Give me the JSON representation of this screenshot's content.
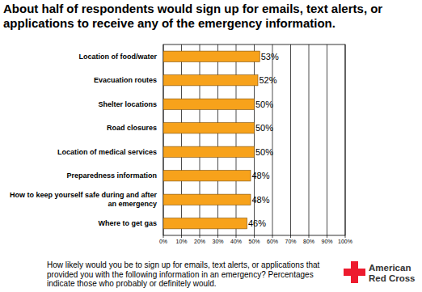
{
  "chart_data": {
    "type": "bar",
    "orientation": "horizontal",
    "title": "About half of respondents would sign up for emails, text alerts, or applications to receive any of the emergency information.",
    "caption": "How likely would you be to sign up for emails, text alerts, or applications that provided you with the following information in an emergency?  Percentages indicate those who probably or definitely would.",
    "logo_text": [
      "American",
      "Red Cross"
    ],
    "categories": [
      "Location of food/water",
      "Evacuation routes",
      "Shelter locations",
      "Road closures",
      "Location of medical services",
      "Preparedness information",
      "How to keep yourself safe during and after an emergency",
      "Where to get gas"
    ],
    "values": [
      53,
      52,
      50,
      50,
      50,
      48,
      48,
      46
    ],
    "value_labels": [
      "53%",
      "52%",
      "50%",
      "50%",
      "50%",
      "48%",
      "48%",
      "46%"
    ],
    "data_labels": true,
    "color": "#f7a21b",
    "xlim": [
      0,
      100
    ],
    "xticks": [
      {
        "value": 0,
        "label": "0%"
      },
      {
        "value": 10,
        "label": "10%"
      },
      {
        "value": 20,
        "label": "20%"
      },
      {
        "value": 30,
        "label": "30%"
      },
      {
        "value": 40,
        "label": "40%"
      },
      {
        "value": 50,
        "label": "50%"
      },
      {
        "value": 60,
        "label": "60%"
      },
      {
        "value": 70,
        "label": "70%"
      },
      {
        "value": 80,
        "label": "80%"
      },
      {
        "value": 90,
        "label": "90%"
      },
      {
        "value": 100,
        "label": "100%"
      }
    ],
    "grid": true
  }
}
